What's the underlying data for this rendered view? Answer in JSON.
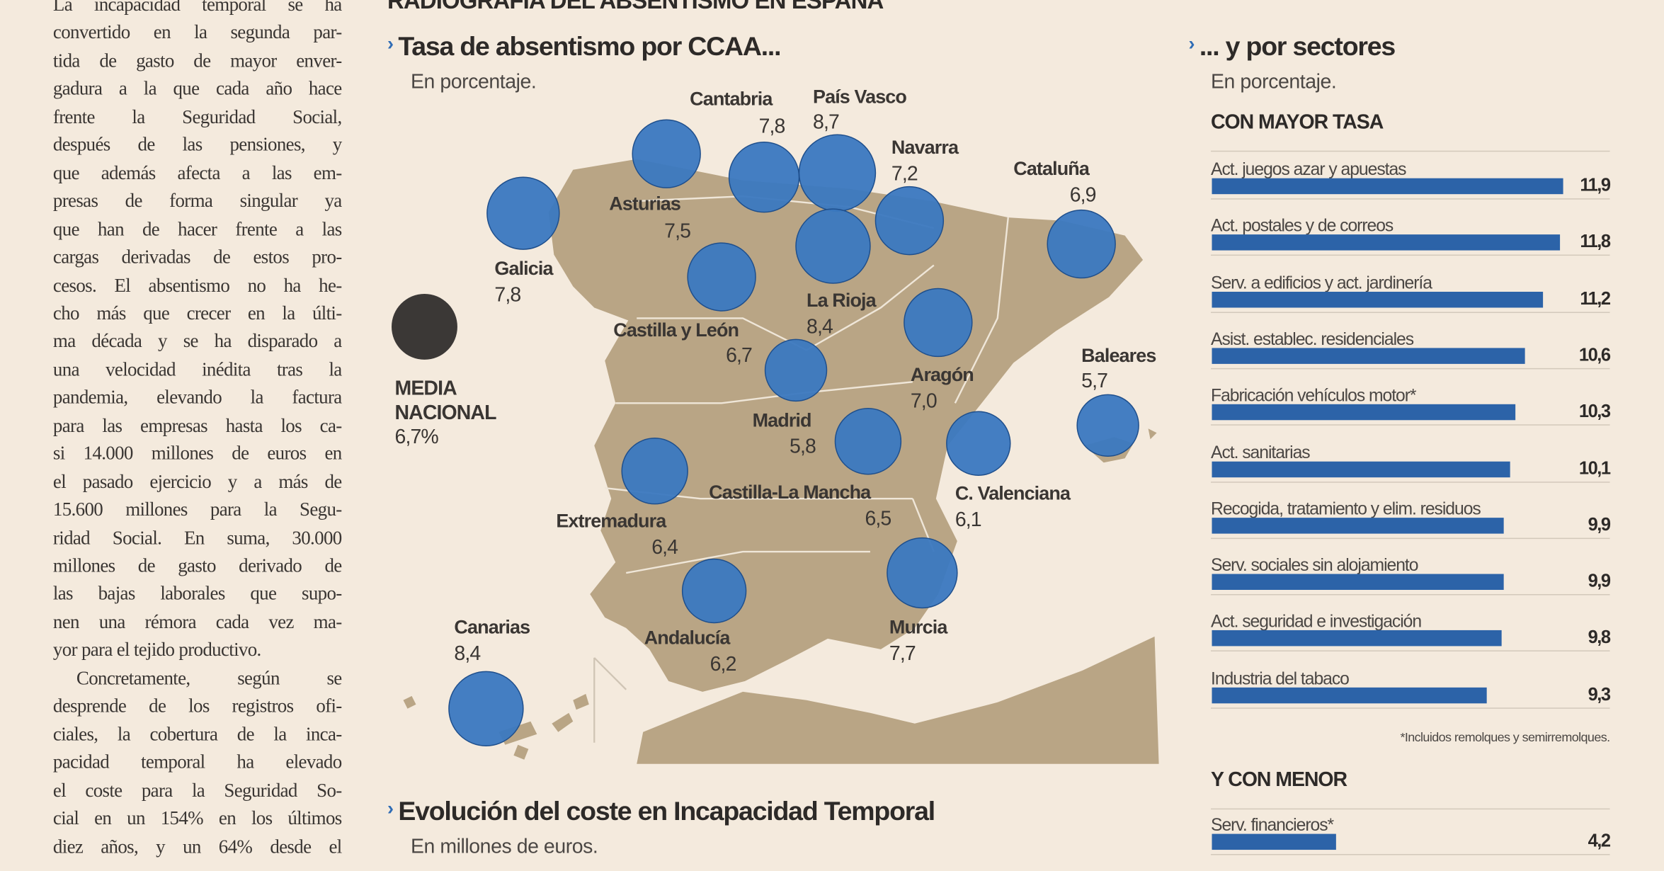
{
  "article": {
    "lines": [
      "La incapacidad temporal se ha",
      "convertido en la segunda par-",
      "tida de gasto de mayor enver-",
      "gadura a la que cada año hace",
      "frente la Seguridad Social,",
      "después de las pensiones, y",
      "que además afecta a las em-",
      "presas de forma singular ya",
      "que han de hacer frente a las",
      "cargas derivadas de estos pro-",
      "cesos. El absentismo no ha he-",
      "cho más que crecer en la últi-",
      "ma década y se ha disparado a",
      "una velocidad inédita tras la",
      "pandemia, elevando la factura",
      "para las empresas hasta los ca-",
      "si 14.000 millones de euros en",
      "el pasado ejercicio y a más de",
      "15.600 millones para la Segu-",
      "ridad Social. En suma, 30.000",
      "millones de gasto derivado de",
      "las bajas laborales que supo-",
      "nen una rémora cada vez ma-",
      "yor para el tejido productivo.",
      "Concretamente, según se",
      "desprende de los registros ofi-",
      "ciales, la cobertura de la inca-",
      "pacidad temporal ha elevado",
      "el coste para la Seguridad So-",
      "cial en un 154% en los últimos",
      "diez años, y un 64% desde el"
    ]
  },
  "infographic": {
    "title": "RADIOGRAFÍA DEL ABSENTISMO EN ESPAÑA",
    "chevron": "›",
    "colors": {
      "bubble": "#3a78c0",
      "land": "#b9a585",
      "national": "#3b3836",
      "bar": "#2c63a8",
      "background": "#f4eadd"
    }
  },
  "chart_data": [
    {
      "type": "scatter",
      "title": "Tasa de absentismo por CCAA...",
      "subtitle": "En porcentaje.",
      "national_average": {
        "label_lines": [
          "MEDIA",
          "NACIONAL",
          "6,7%"
        ],
        "value": 6.7
      },
      "regions": [
        {
          "name": "Asturias",
          "label": "7,5",
          "value": 7.5
        },
        {
          "name": "Cantabria",
          "label": "7,8",
          "value": 7.8
        },
        {
          "name": "País Vasco",
          "label": "8,7",
          "value": 8.7
        },
        {
          "name": "Galicia",
          "label": "7,8",
          "value": 7.8
        },
        {
          "name": "Navarra",
          "label": "7,2",
          "value": 7.2
        },
        {
          "name": "La Rioja",
          "label": "8,4",
          "value": 8.4
        },
        {
          "name": "Cataluña",
          "label": "6,9",
          "value": 6.9
        },
        {
          "name": "Castilla y León",
          "label": "6,7",
          "value": 6.7
        },
        {
          "name": "Aragón",
          "label": "7,0",
          "value": 7.0
        },
        {
          "name": "Madrid",
          "label": "5,8",
          "value": 5.8
        },
        {
          "name": "Extremadura",
          "label": "6,4",
          "value": 6.4
        },
        {
          "name": "Castilla-La Mancha",
          "label": "6,5",
          "value": 6.5
        },
        {
          "name": "C. Valenciana",
          "label": "6,1",
          "value": 6.1
        },
        {
          "name": "Baleares",
          "label": "5,7",
          "value": 5.7
        },
        {
          "name": "Murcia",
          "label": "7,7",
          "value": 7.7
        },
        {
          "name": "Andalucía",
          "label": "6,2",
          "value": 6.2
        },
        {
          "name": "Canarias",
          "label": "8,4",
          "value": 8.4
        }
      ]
    },
    {
      "type": "bar",
      "title": "... y por sectores",
      "subtitle": "En porcentaje.",
      "xlim": [
        0,
        11.9
      ],
      "groups": [
        {
          "heading": "CON MAYOR TASA",
          "items": [
            {
              "category": "Act. juegos azar y apuestas",
              "value": 11.9,
              "label": "11,9"
            },
            {
              "category": "Act. postales y de correos",
              "value": 11.8,
              "label": "11,8"
            },
            {
              "category": "Serv. a edificios y act. jardinería",
              "value": 11.2,
              "label": "11,2"
            },
            {
              "category": "Asist. establec. residenciales",
              "value": 10.6,
              "label": "10,6"
            },
            {
              "category": "Fabricación vehículos motor*",
              "value": 10.3,
              "label": "10,3"
            },
            {
              "category": "Act. sanitarias",
              "value": 10.1,
              "label": "10,1"
            },
            {
              "category": "Recogida, tratamiento y elim. residuos",
              "value": 9.9,
              "label": "9,9"
            },
            {
              "category": "Serv. sociales sin alojamiento",
              "value": 9.9,
              "label": "9,9"
            },
            {
              "category": "Act. seguridad e investigación",
              "value": 9.8,
              "label": "9,8"
            },
            {
              "category": "Industria del tabaco",
              "value": 9.3,
              "label": "9,3"
            }
          ],
          "footnote": "*Incluidos remolques y semirremolques."
        },
        {
          "heading": "Y CON MENOR",
          "items": [
            {
              "category": "Serv. financieros*",
              "value": 4.2,
              "label": "4,2"
            }
          ]
        }
      ]
    },
    {
      "type": "line",
      "title": "Evolución del coste en Incapacidad Temporal",
      "subtitle": "En millones de euros."
    }
  ]
}
